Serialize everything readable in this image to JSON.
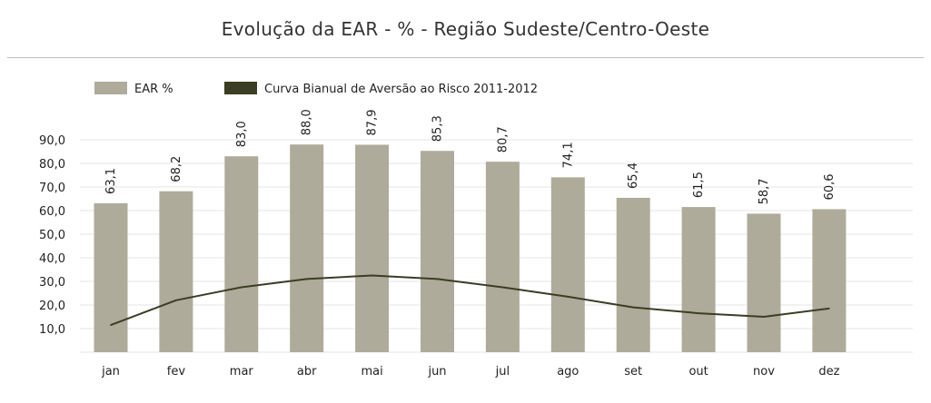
{
  "chart_data": {
    "type": "bar",
    "title": "Evolução da EAR - % - Região Sudeste/Centro-Oeste",
    "categories": [
      "jan",
      "fev",
      "mar",
      "abr",
      "mai",
      "jun",
      "jul",
      "ago",
      "set",
      "out",
      "nov",
      "dez"
    ],
    "series": [
      {
        "name": "EAR %",
        "type": "bar",
        "color": "#aeab9b",
        "values": [
          63.1,
          68.2,
          83.0,
          88.0,
          87.9,
          85.3,
          80.7,
          74.1,
          65.4,
          61.5,
          58.7,
          60.6
        ],
        "value_labels": [
          "63,1",
          "68,2",
          "83,0",
          "88,0",
          "87,9",
          "85,3",
          "80,7",
          "74,1",
          "65,4",
          "61,5",
          "58,7",
          "60,6"
        ]
      },
      {
        "name": "Curva Bianual de Aversão ao Risco 2011-2012",
        "type": "line",
        "color": "#3b3d24",
        "values": [
          11.5,
          22.0,
          27.5,
          31.0,
          32.5,
          31.0,
          27.5,
          23.5,
          19.0,
          16.5,
          15.0,
          18.5
        ]
      }
    ],
    "ytick_labels": [
      "10,0",
      "20,0",
      "30,0",
      "40,0",
      "50,0",
      "60,0",
      "70,0",
      "80,0",
      "90,0"
    ],
    "ytick_values": [
      10,
      20,
      30,
      40,
      50,
      60,
      70,
      80,
      90
    ],
    "ylim": [
      0,
      100
    ],
    "xlabel": "",
    "ylabel": "",
    "grid": true,
    "legend_position": "top-left"
  }
}
